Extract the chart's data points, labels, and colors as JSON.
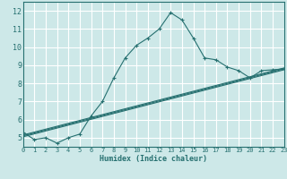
{
  "xlabel": "Humidex (Indice chaleur)",
  "bg_color": "#cde8e8",
  "grid_color": "#ffffff",
  "line_color": "#267070",
  "xlim": [
    0,
    23
  ],
  "ylim": [
    4.5,
    12.5
  ],
  "yticks": [
    5,
    6,
    7,
    8,
    9,
    10,
    11,
    12
  ],
  "xticks": [
    0,
    1,
    2,
    3,
    4,
    5,
    6,
    7,
    8,
    9,
    10,
    11,
    12,
    13,
    14,
    15,
    16,
    17,
    18,
    19,
    20,
    21,
    22,
    23
  ],
  "main_x": [
    0,
    1,
    2,
    3,
    4,
    5,
    6,
    7,
    8,
    9,
    10,
    11,
    12,
    13,
    14,
    15,
    16,
    17,
    18,
    19,
    20,
    21,
    22,
    23
  ],
  "main_y": [
    5.3,
    4.9,
    5.0,
    4.7,
    5.0,
    5.2,
    6.2,
    7.0,
    8.3,
    9.4,
    10.1,
    10.5,
    11.0,
    11.9,
    11.5,
    10.5,
    9.4,
    9.3,
    8.9,
    8.7,
    8.3,
    8.7,
    8.75,
    8.8
  ],
  "trend_lines": [
    {
      "x": [
        0,
        23
      ],
      "y": [
        5.05,
        8.75
      ]
    },
    {
      "x": [
        0,
        23
      ],
      "y": [
        5.1,
        8.8
      ]
    },
    {
      "x": [
        0,
        23
      ],
      "y": [
        5.15,
        8.85
      ]
    }
  ]
}
